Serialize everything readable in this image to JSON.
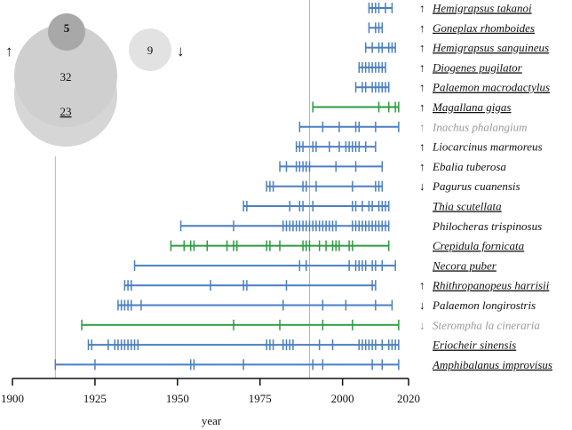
{
  "chart_data": {
    "type": "timeline",
    "xlabel": "year",
    "xlim": [
      1900,
      2020
    ],
    "x_ticks": [
      1900,
      1925,
      1950,
      1975,
      2000,
      2020
    ],
    "reference_lines": [
      1913,
      1990
    ],
    "colors": {
      "blue": "#4a7fc0",
      "green": "#2e9a3f",
      "gray": "#999999",
      "black": "#111111"
    },
    "venn": {
      "up_symbol": "↑",
      "down_symbol": "↓",
      "inner_value": "5",
      "overlap_value": "32",
      "bottom_value": "23",
      "separate_value": "9"
    },
    "series": [
      {
        "name": "Hemigrapsus takanoi",
        "arrow": "↑",
        "underline": true,
        "italic": true,
        "gray": false,
        "color": "blue",
        "start": 2008,
        "end": 2015,
        "ticks": [
          2008,
          2009,
          2010,
          2011,
          2013,
          2015
        ]
      },
      {
        "name": "Goneplax rhomboides",
        "arrow": "↑",
        "underline": true,
        "italic": true,
        "gray": false,
        "color": "blue",
        "start": 2008,
        "end": 2012,
        "ticks": [
          2008,
          2010,
          2011,
          2012
        ]
      },
      {
        "name": "Hemigrapsus sanguineus",
        "arrow": "↑",
        "underline": true,
        "italic": true,
        "gray": false,
        "color": "blue",
        "start": 2007,
        "end": 2016,
        "ticks": [
          2007,
          2009,
          2011,
          2012,
          2014,
          2015,
          2016
        ]
      },
      {
        "name": "Diogenes pugilator",
        "arrow": "↑",
        "underline": true,
        "italic": true,
        "gray": false,
        "color": "blue",
        "start": 2005,
        "end": 2013,
        "ticks": [
          2005,
          2006,
          2007,
          2008,
          2009,
          2010,
          2011,
          2012,
          2013
        ]
      },
      {
        "name": "Palaemon macrodactylus",
        "arrow": "↑",
        "underline": true,
        "italic": true,
        "gray": false,
        "color": "blue",
        "start": 2004,
        "end": 2014,
        "ticks": [
          2004,
          2006,
          2007,
          2009,
          2010,
          2011,
          2012,
          2013,
          2014
        ]
      },
      {
        "name": "Magallana gigas",
        "arrow": "↑",
        "underline": true,
        "italic": true,
        "gray": false,
        "color": "green",
        "start": 1991,
        "end": 2017,
        "ticks": [
          1991,
          2011,
          2014,
          2016,
          2017
        ]
      },
      {
        "name": "Inachus phalangium",
        "arrow": "↑",
        "underline": false,
        "italic": true,
        "gray": true,
        "color": "blue",
        "start": 1987,
        "end": 2017,
        "ticks": [
          1987,
          1994,
          1999,
          2004,
          2005,
          2010,
          2017
        ]
      },
      {
        "name": "Liocarcinus marmoreus",
        "arrow": "↑",
        "underline": false,
        "italic": true,
        "gray": false,
        "color": "blue",
        "start": 1986,
        "end": 2010,
        "ticks": [
          1986,
          1987,
          1988,
          1991,
          1992,
          1996,
          1999,
          2001,
          2002,
          2003,
          2004,
          2005,
          2007,
          2010
        ]
      },
      {
        "name": "Ebalia tuberosa",
        "arrow": "↑",
        "underline": false,
        "italic": true,
        "gray": false,
        "color": "blue",
        "start": 1981,
        "end": 2012,
        "ticks": [
          1981,
          1983,
          1986,
          1987,
          1988,
          1989,
          1990,
          1998,
          2004,
          2012
        ]
      },
      {
        "name": "Pagurus cuanensis",
        "arrow": "↓",
        "underline": false,
        "italic": true,
        "gray": false,
        "color": "blue",
        "start": 1977,
        "end": 2012,
        "ticks": [
          1977,
          1978,
          1979,
          1988,
          1989,
          1992,
          2003,
          2010,
          2011,
          2012
        ]
      },
      {
        "name": "Thia scutellata",
        "arrow": "",
        "underline": true,
        "italic": true,
        "gray": false,
        "color": "blue",
        "start": 1970,
        "end": 2014,
        "ticks": [
          1970,
          1971,
          1984,
          1987,
          1988,
          1991,
          2003,
          2004,
          2006,
          2008,
          2009,
          2011,
          2012,
          2013,
          2014
        ]
      },
      {
        "name": "Philocheras trispinosus",
        "arrow": "",
        "underline": false,
        "italic": true,
        "gray": false,
        "color": "blue",
        "start": 1951,
        "end": 2014,
        "ticks": [
          1951,
          1967,
          1982,
          1983,
          1984,
          1985,
          1986,
          1987,
          1988,
          1989,
          1990,
          1991,
          1992,
          1993,
          1994,
          1995,
          1996,
          1997,
          1998,
          2003,
          2004,
          2005,
          2006,
          2007,
          2008,
          2009,
          2010,
          2011,
          2012,
          2013,
          2014
        ]
      },
      {
        "name": "Crepidula fornicata",
        "arrow": "",
        "underline": true,
        "italic": true,
        "gray": false,
        "color": "green",
        "start": 1948,
        "end": 2014,
        "ticks": [
          1948,
          1952,
          1954,
          1955,
          1959,
          1965,
          1967,
          1968,
          1977,
          1978,
          1981,
          1988,
          1989,
          1990,
          1993,
          1995,
          1997,
          1998,
          1999,
          2002,
          2003,
          2014
        ]
      },
      {
        "name": "Necora puber",
        "arrow": "",
        "underline": true,
        "italic": true,
        "gray": false,
        "color": "blue",
        "start": 1937,
        "end": 2016,
        "ticks": [
          1937,
          1987,
          1989,
          2002,
          2004,
          2005,
          2006,
          2007,
          2009,
          2010,
          2012,
          2016
        ]
      },
      {
        "name": "Rhithropanopeus harrisii",
        "arrow": "↑",
        "underline": true,
        "italic": true,
        "gray": false,
        "color": "blue",
        "start": 1934,
        "end": 2010,
        "ticks": [
          1934,
          1935,
          1936,
          1960,
          1970,
          1971,
          1983,
          2009,
          2010
        ]
      },
      {
        "name": "Palaemon longirostris",
        "arrow": "↓",
        "underline": false,
        "italic": true,
        "gray": false,
        "color": "blue",
        "start": 1932,
        "end": 2015,
        "ticks": [
          1932,
          1933,
          1934,
          1935,
          1936,
          1939,
          1982,
          1994,
          2001,
          2010,
          2015
        ]
      },
      {
        "name": "Sterompha la cineraria",
        "arrow": "↓",
        "underline": false,
        "italic": true,
        "gray": true,
        "color": "green",
        "start": 1921,
        "end": 2017,
        "ticks": [
          1921,
          1967,
          1981,
          1994,
          2003,
          2017
        ]
      },
      {
        "name": "Eriocheir sinensis",
        "arrow": "",
        "underline": true,
        "italic": true,
        "gray": false,
        "color": "blue",
        "start": 1923,
        "end": 2017,
        "ticks": [
          1923,
          1924,
          1929,
          1931,
          1932,
          1933,
          1934,
          1935,
          1936,
          1937,
          1938,
          1977,
          1978,
          1979,
          1982,
          1983,
          1984,
          1985,
          1993,
          1997,
          2005,
          2006,
          2007,
          2008,
          2009,
          2010,
          2012,
          2014,
          2015,
          2016,
          2017
        ]
      },
      {
        "name": "Amphibalanus improvisus",
        "arrow": "",
        "underline": true,
        "italic": true,
        "gray": false,
        "color": "blue",
        "start": 1913,
        "end": 2017,
        "ticks": [
          1913,
          1925,
          1954,
          1955,
          1970,
          1991,
          1994,
          2009,
          2012,
          2017
        ]
      }
    ]
  }
}
